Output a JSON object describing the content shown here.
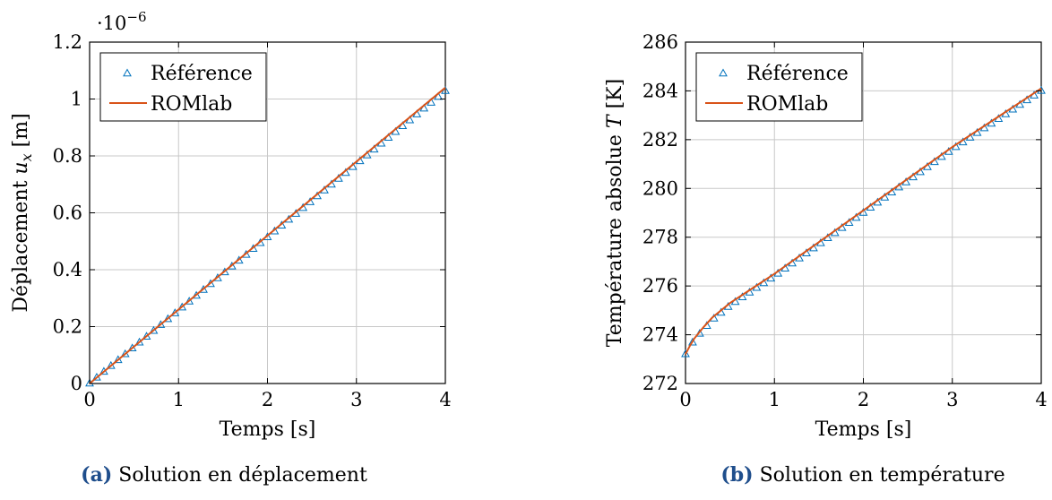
{
  "chart_data": [
    {
      "type": "line",
      "caption_letter": "(a)",
      "caption_text": "Solution en déplacement",
      "xlabel": "Temps [s]",
      "ylabel_parts": [
        "Déplacement ",
        "u",
        "x",
        " [m]"
      ],
      "multiplier_base": "·10",
      "multiplier_exp": "−6",
      "xlim": [
        0,
        4
      ],
      "ylim": [
        0,
        1.2
      ],
      "xticks": [
        0,
        1,
        2,
        3,
        4
      ],
      "yticks": [
        0,
        0.2,
        0.4,
        0.6,
        0.8,
        1,
        1.2
      ],
      "ytick_labels": [
        "0",
        "0.2",
        "0.4",
        "0.6",
        "0.8",
        "1",
        "1.2"
      ],
      "grid": true,
      "legend_position": "top-left",
      "series": [
        {
          "name": "Référence",
          "marker": "triangle",
          "color": "#0072bd",
          "x": [
            0,
            4
          ],
          "y": [
            0,
            1.028
          ]
        },
        {
          "name": "ROMlab",
          "marker": "line",
          "color": "#d95319",
          "x": [
            0,
            4
          ],
          "y": [
            0,
            1.04
          ]
        }
      ]
    },
    {
      "type": "line",
      "caption_letter": "(b)",
      "caption_text": "Solution en température",
      "xlabel": "Temps [s]",
      "ylabel_parts": [
        "Température absolue ",
        "T",
        "",
        " [K]"
      ],
      "xlim": [
        0,
        4
      ],
      "ylim": [
        272,
        286
      ],
      "xticks": [
        0,
        1,
        2,
        3,
        4
      ],
      "yticks": [
        272,
        274,
        276,
        278,
        280,
        282,
        284,
        286
      ],
      "ytick_labels": [
        "272",
        "274",
        "276",
        "278",
        "280",
        "282",
        "284",
        "286"
      ],
      "grid": true,
      "legend_position": "top-left",
      "series": [
        {
          "name": "Référence",
          "marker": "triangle",
          "color": "#0072bd",
          "x": [
            0,
            0.05,
            0.1,
            0.2,
            0.3,
            0.5,
            0.75,
            1,
            1.5,
            2,
            2.5,
            3,
            3.5,
            4
          ],
          "y": [
            273.2,
            273.5,
            273.8,
            274.2,
            274.6,
            275.2,
            275.8,
            276.4,
            277.7,
            279.0,
            280.3,
            281.6,
            282.8,
            284.0
          ]
        },
        {
          "name": "ROMlab",
          "marker": "line",
          "color": "#d95319",
          "x": [
            0,
            0.05,
            0.1,
            0.2,
            0.3,
            0.5,
            0.75,
            1,
            1.5,
            2,
            2.5,
            3,
            3.5,
            4
          ],
          "y": [
            273.2,
            273.55,
            273.85,
            274.3,
            274.7,
            275.3,
            275.9,
            276.5,
            277.8,
            279.1,
            280.4,
            281.7,
            282.9,
            284.1
          ]
        }
      ]
    }
  ]
}
